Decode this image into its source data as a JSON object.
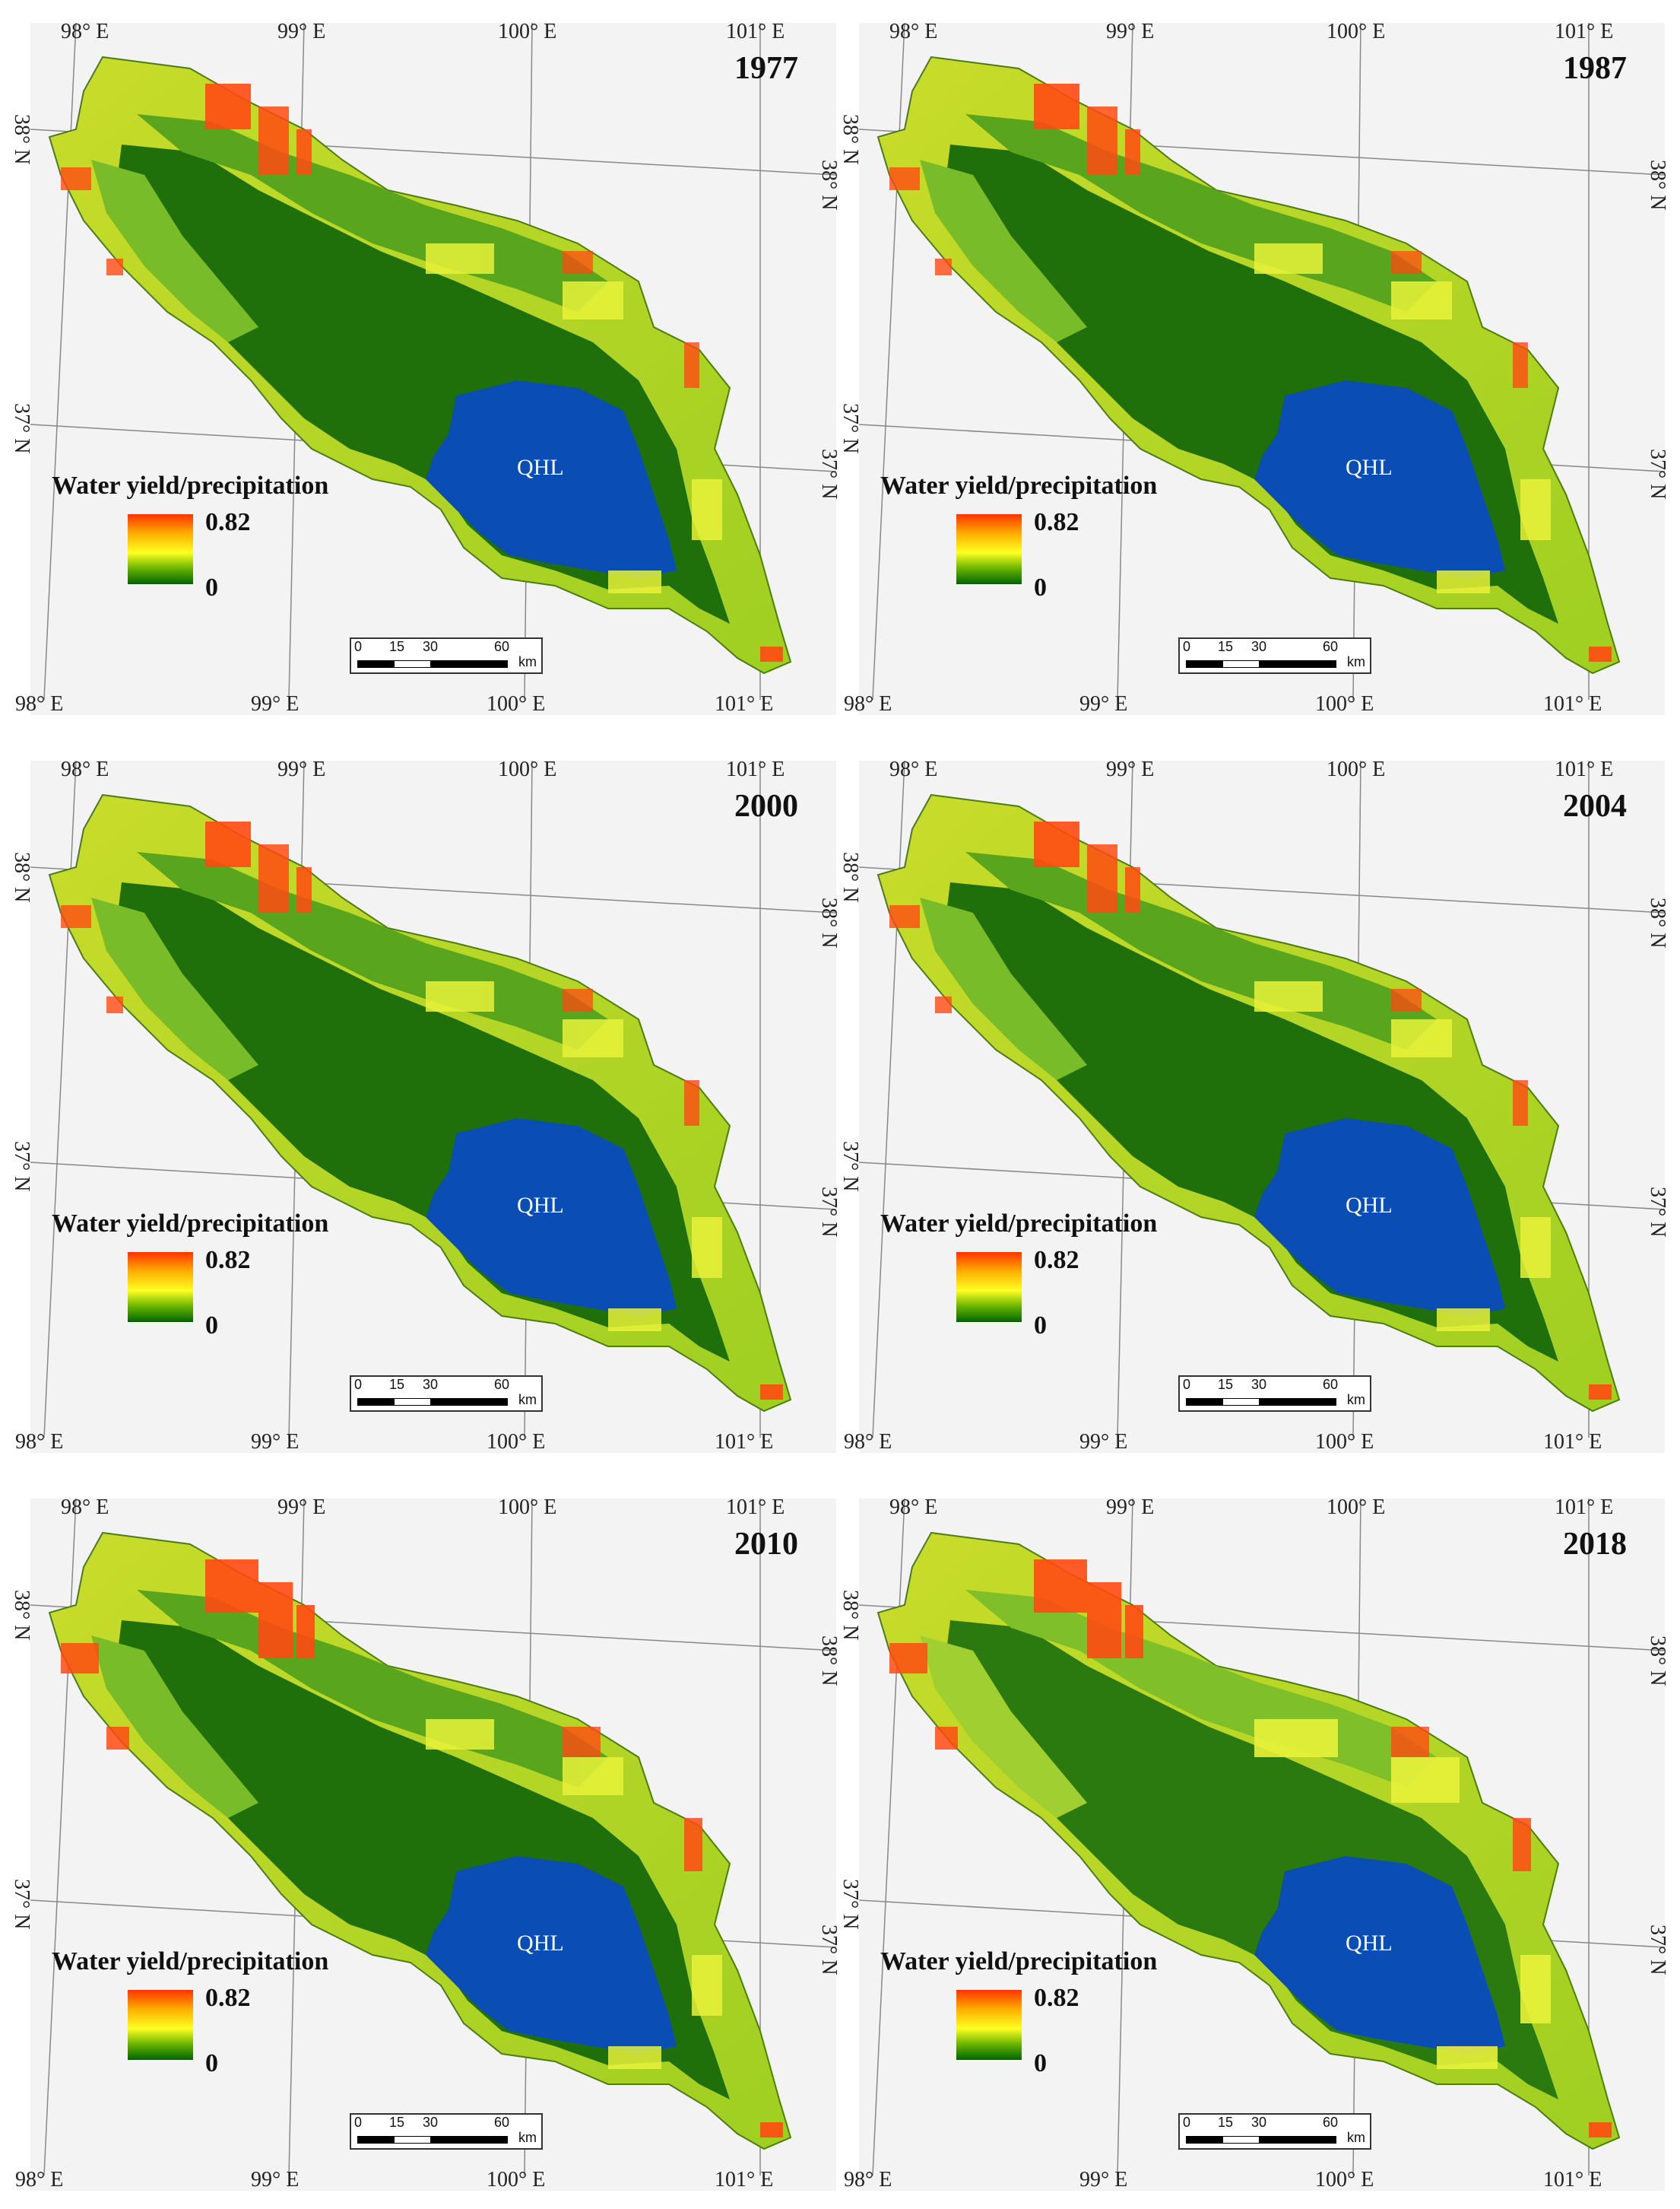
{
  "figure": {
    "coords": {
      "lon_top": [
        "98° E",
        "99° E",
        "100° E",
        "101° E"
      ],
      "lon_bottom": [
        "98° E",
        "99° E",
        "100° E",
        "101° E"
      ],
      "lat_left": [
        "38° N",
        "37° N"
      ],
      "lat_right": [
        "38° N",
        "37° N"
      ]
    },
    "legend": {
      "title": "Water yield/precipitation",
      "max_label": "0.82",
      "min_label": "0",
      "colors": [
        "#ff3300",
        "#ffb000",
        "#ffff22",
        "#66b300",
        "#006400"
      ]
    },
    "lake_label": "QHL",
    "scale": {
      "labels": [
        "0",
        "15",
        "30",
        "60"
      ],
      "unit": "km"
    },
    "colors": {
      "lake": "#0a4db5",
      "basin_dark_green": "#1f6f0b",
      "basin_mid_green": "#5aa51e",
      "basin_light": "#c9dc2a",
      "high_ratio": "#ff4a12",
      "background": "#f3f3f3"
    },
    "panels": [
      {
        "year": "1977"
      },
      {
        "year": "1987"
      },
      {
        "year": "2000"
      },
      {
        "year": "2004"
      },
      {
        "year": "2010"
      },
      {
        "year": "2018"
      }
    ]
  }
}
